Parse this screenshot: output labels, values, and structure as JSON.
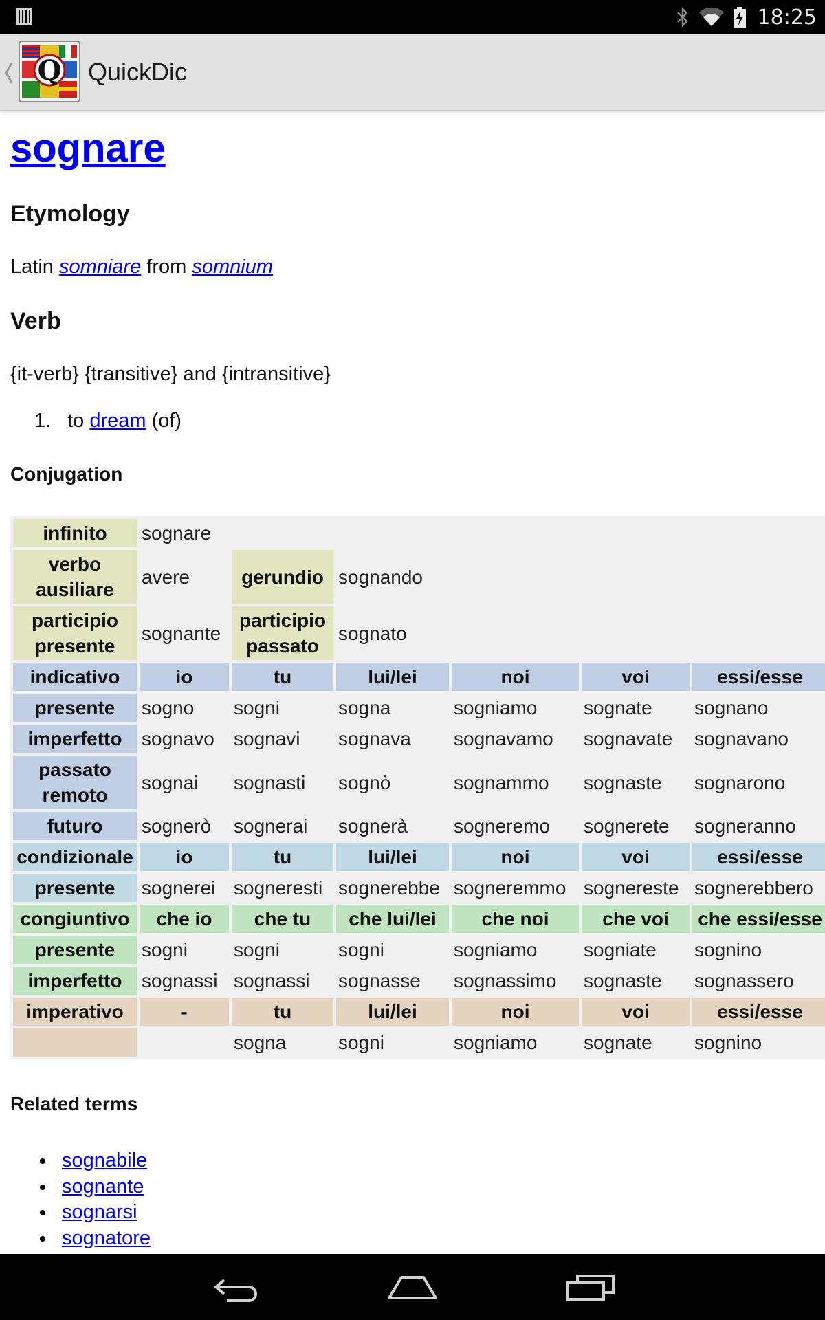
{
  "status_bar": {
    "time": "18:25",
    "icons": [
      "sim-icon",
      "bluetooth-icon",
      "wifi-icon",
      "battery-charging-icon"
    ]
  },
  "action_bar": {
    "title": "QuickDic",
    "icon": "quickdic-logo"
  },
  "entry": {
    "headword": "sognare",
    "etymology": {
      "heading": "Etymology",
      "prefix": "Latin",
      "link1": "somniare",
      "middle": "from",
      "link2": "somnium"
    },
    "verb": {
      "heading": "Verb",
      "template": "{it-verb} {transitive} and {intransitive}",
      "definitions": [
        {
          "number": "1.",
          "before": "to",
          "link": "dream",
          "after": "(of)"
        }
      ]
    },
    "conjugation": {
      "heading": "Conjugation",
      "infinito_label": "infinito",
      "infinito": "sognare",
      "ausiliare_label": "verbo ausiliare",
      "ausiliare": "avere",
      "gerundio_label": "gerundio",
      "gerundio": "sognando",
      "part_pres_label": "participio presente",
      "part_pres": "sognante",
      "part_pass_label": "participio passato",
      "part_pass": "sognato",
      "indicativo": {
        "label": "indicativo",
        "persons": [
          "io",
          "tu",
          "lui/lei",
          "noi",
          "voi",
          "essi/esse"
        ],
        "rows": [
          {
            "tense": "presente",
            "forms": [
              "sogno",
              "sogni",
              "sogna",
              "sogniamo",
              "sognate",
              "sognano"
            ]
          },
          {
            "tense": "imperfetto",
            "forms": [
              "sognavo",
              "sognavi",
              "sognava",
              "sognavamo",
              "sognavate",
              "sognavano"
            ]
          },
          {
            "tense": "passato remoto",
            "forms": [
              "sognai",
              "sognasti",
              "sognò",
              "sognammo",
              "sognaste",
              "sognarono"
            ]
          },
          {
            "tense": "futuro",
            "forms": [
              "sognerò",
              "sognerai",
              "sognerà",
              "sogneremo",
              "sognerete",
              "sogneranno"
            ]
          }
        ]
      },
      "condizionale": {
        "label": "condizionale",
        "persons": [
          "io",
          "tu",
          "lui/lei",
          "noi",
          "voi",
          "essi/esse"
        ],
        "rows": [
          {
            "tense": "presente",
            "forms": [
              "sognerei",
              "sogneresti",
              "sognerebbe",
              "sogneremmo",
              "sognereste",
              "sognerebbero"
            ]
          }
        ]
      },
      "congiuntivo": {
        "label": "congiuntivo",
        "persons": [
          "che io",
          "che tu",
          "che lui/lei",
          "che noi",
          "che voi",
          "che essi/esse"
        ],
        "rows": [
          {
            "tense": "presente",
            "forms": [
              "sogni",
              "sogni",
              "sogni",
              "sogniamo",
              "sogniate",
              "sognino"
            ]
          },
          {
            "tense": "imperfetto",
            "forms": [
              "sognassi",
              "sognassi",
              "sognasse",
              "sognassimo",
              "sognaste",
              "sognassero"
            ]
          }
        ]
      },
      "imperativo": {
        "label": "imperativo",
        "persons": [
          "-",
          "tu",
          "lui/lei",
          "noi",
          "voi",
          "essi/esse"
        ],
        "forms": [
          "",
          "sogna",
          "sogni",
          "sogniamo",
          "sognate",
          "sognino"
        ]
      }
    },
    "related": {
      "heading": "Related terms",
      "items": [
        "sognabile",
        "sognante",
        "sognarsi",
        "sognatore"
      ]
    }
  },
  "nav_bar": {
    "icons": [
      "back-icon",
      "home-icon",
      "recents-icon"
    ]
  },
  "colors": {
    "link": "#0000ee",
    "cell_yellow": "#e2e6c0",
    "indicativo": "#c0cfe4",
    "condizionale": "#c0d8e4",
    "congiuntivo": "#c0e4c0",
    "imperativo": "#e4d4c0"
  }
}
